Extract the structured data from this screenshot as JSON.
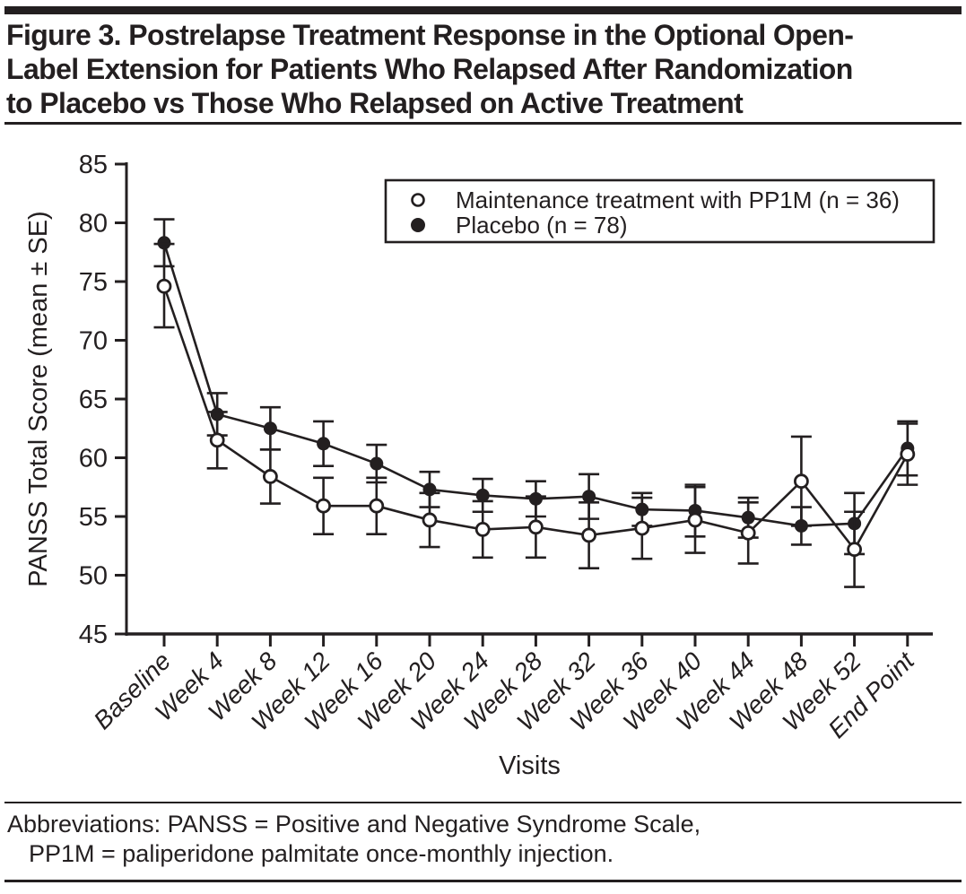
{
  "colors": {
    "ink": "#231f20",
    "background": "#ffffff"
  },
  "figure": {
    "title_lines": [
      "Figure 3. Postrelapse Treatment Response in the Optional Open-",
      "Label Extension for Patients Who Relapsed After Randomization",
      "to Placebo vs Those Who Relapsed on Active Treatment"
    ]
  },
  "chart_data": {
    "type": "line",
    "title": "",
    "xlabel": "Visits",
    "ylabel": "PANSS Total Score (mean ± SE)",
    "ylim": [
      45,
      85
    ],
    "ytick_step": 5,
    "ytick_labels": [
      "45",
      "50",
      "55",
      "60",
      "65",
      "70",
      "75",
      "80",
      "85"
    ],
    "grid": false,
    "legend_position": "top-right",
    "error_bars": "mean ± SE",
    "categories": [
      "Baseline",
      "Week 4",
      "Week 8",
      "Week 12",
      "Week 16",
      "Week 20",
      "Week 24",
      "Week 28",
      "Week 32",
      "Week 36",
      "Week 40",
      "Week 44",
      "Week 48",
      "Week 52",
      "End Point"
    ],
    "series": [
      {
        "name": "Maintenance treatment with PP1M (n = 36)",
        "marker": "open-circle",
        "values": [
          74.6,
          61.5,
          58.4,
          55.9,
          55.9,
          54.7,
          53.9,
          54.1,
          53.4,
          54.0,
          54.7,
          53.6,
          58.0,
          52.2,
          60.3
        ],
        "upper": [
          78.2,
          63.9,
          60.7,
          58.3,
          58.3,
          57.0,
          56.3,
          56.7,
          56.2,
          56.6,
          57.5,
          56.2,
          61.8,
          55.4,
          62.9
        ],
        "lower": [
          71.1,
          59.1,
          56.1,
          53.5,
          53.5,
          52.4,
          51.5,
          51.5,
          50.6,
          51.4,
          51.9,
          51.0,
          54.2,
          49.0,
          57.7
        ]
      },
      {
        "name": "Placebo (n = 78)",
        "marker": "filled-circle",
        "values": [
          78.3,
          63.7,
          62.5,
          61.2,
          59.5,
          57.3,
          56.8,
          56.5,
          56.7,
          55.6,
          55.5,
          54.9,
          54.2,
          54.4,
          60.8
        ],
        "upper": [
          80.3,
          65.5,
          64.3,
          63.1,
          61.1,
          58.8,
          58.2,
          58.0,
          58.6,
          57.0,
          57.7,
          56.6,
          55.8,
          57.0,
          63.1
        ],
        "lower": [
          76.3,
          61.9,
          60.7,
          59.3,
          57.9,
          55.8,
          55.4,
          55.0,
          54.8,
          54.2,
          53.3,
          53.2,
          52.6,
          51.8,
          58.5
        ]
      }
    ]
  },
  "footer": {
    "line1": "Abbreviations: PANSS = Positive and Negative Syndrome Scale,",
    "line2": "PP1M = paliperidone palmitate once-monthly injection."
  }
}
